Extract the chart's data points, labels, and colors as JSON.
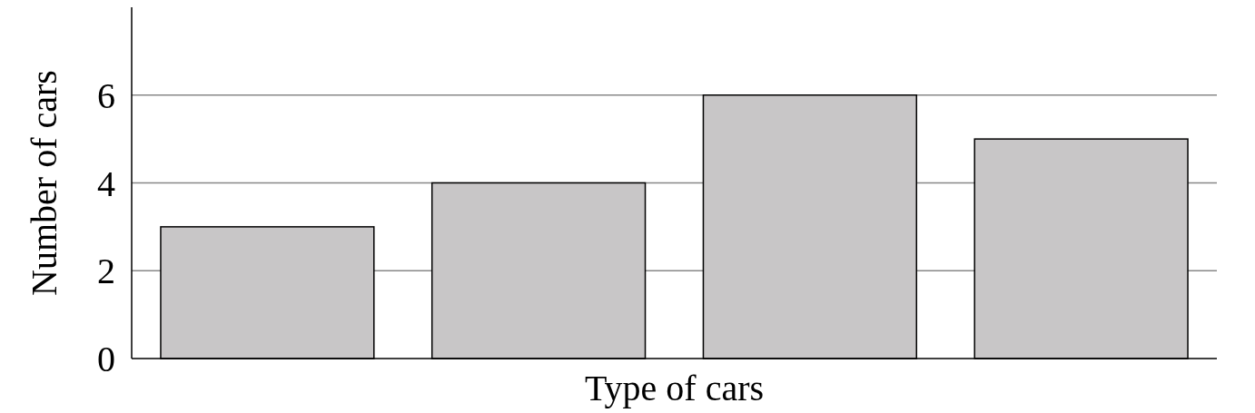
{
  "chart_data": {
    "type": "bar",
    "xlabel": "Type of cars",
    "ylabel": "Number of cars",
    "categories": [
      null,
      null,
      null,
      null
    ],
    "values": [
      3,
      4,
      6,
      5
    ],
    "color": "#c8c6c7",
    "ylim": [
      0,
      8
    ],
    "yticks": [
      0,
      2,
      4,
      6
    ],
    "grid": "y"
  }
}
